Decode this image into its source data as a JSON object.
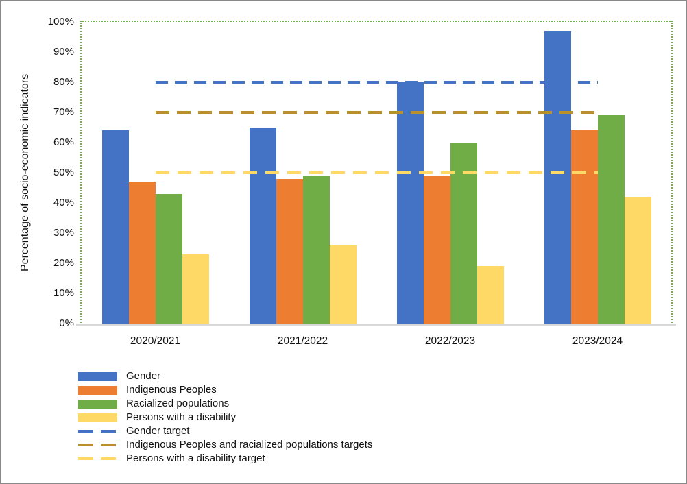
{
  "chart_data": {
    "type": "bar",
    "title": "",
    "ylabel": "Percentage of socio-economic indicators",
    "xlabel": "",
    "categories": [
      "2020/2021",
      "2021/2022",
      "2022/2023",
      "2023/2024"
    ],
    "series": [
      {
        "name": "Gender",
        "color": "#4472C4",
        "values": [
          64,
          65,
          80,
          97
        ]
      },
      {
        "name": "Indigenous Peoples",
        "color": "#ED7D31",
        "values": [
          47,
          48,
          49,
          64
        ]
      },
      {
        "name": "Racialized populations",
        "color": "#70AD47",
        "values": [
          43,
          49,
          60,
          69
        ]
      },
      {
        "name": "Persons with a disability",
        "color": "#FFD966",
        "values": [
          23,
          26,
          19,
          42
        ]
      }
    ],
    "target_lines": [
      {
        "name": "Gender target",
        "color": "#4472C4",
        "value": 80,
        "thickness": 4,
        "dash": 18,
        "gap": 10
      },
      {
        "name": "Indigenous Peoples and racialized populations targets",
        "color": "#B9902B",
        "value": 70,
        "thickness": 5,
        "dash": 20,
        "gap": 11
      },
      {
        "name": "Persons with a disability target",
        "color": "#FFD966",
        "value": 50,
        "thickness": 4,
        "dash": 20,
        "gap": 12
      }
    ],
    "ylim": [
      0,
      100
    ],
    "ytick_step": 10,
    "ytick_labels": [
      "0%",
      "10%",
      "20%",
      "30%",
      "40%",
      "50%",
      "60%",
      "70%",
      "80%",
      "90%",
      "100%"
    ],
    "grid": false,
    "legend_position": "bottom-left",
    "plot_border_color": "#74b04a",
    "axis_line_color": "#d9d9d9"
  }
}
